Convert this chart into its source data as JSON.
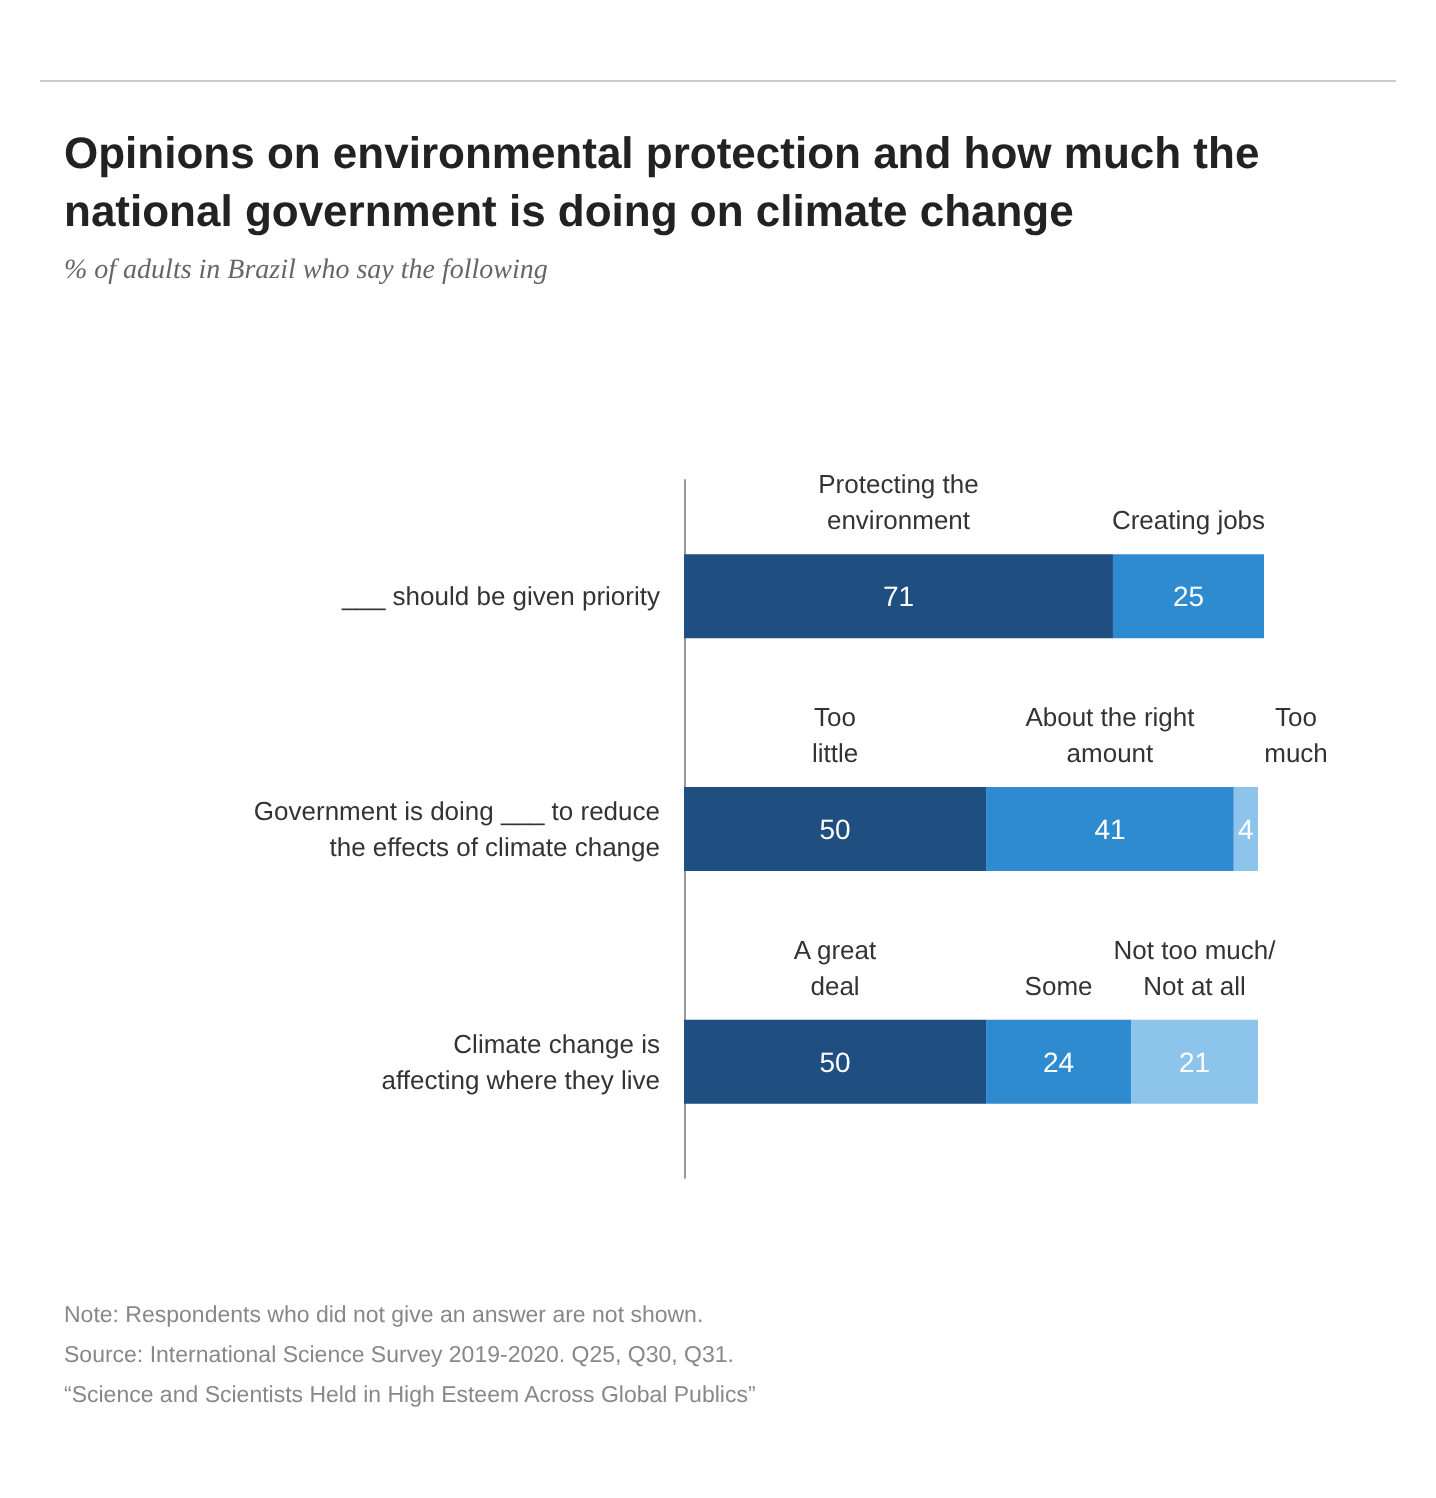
{
  "chart_data": {
    "type": "bar",
    "orientation": "horizontal",
    "stacked": true,
    "data_labels": true,
    "title": "Opinions on environmental protection and how much the national government is doing on climate change",
    "subtitle": "% of adults in Brazil who say the following",
    "categories": [
      "___ should be given priority",
      "Government is doing ___ to reduce\nthe effects of climate change",
      "Climate change is\naffecting where they live"
    ],
    "series": [
      {
        "color": "#1f4f80",
        "values": [
          71,
          50,
          50
        ]
      },
      {
        "color": "#2e8bd0",
        "values": [
          25,
          41,
          24
        ]
      },
      {
        "color": "#8cc4ec",
        "values": [
          null,
          4,
          21
        ]
      }
    ],
    "annotations": [
      "Protecting the\nenvironment",
      "Creating jobs",
      "Too\nlittle",
      "About the right\namount",
      "Too\nmuch",
      "A great\ndeal",
      "Some",
      "Not too much/\nNot at all",
      "Note: Respondents who did not give an answer are not shown.",
      "Source: International Science Survey 2019-2020. Q25, Q30, Q31.",
      "“Science and Scientists Held in High Esteem Across Global Publics”"
    ]
  }
}
